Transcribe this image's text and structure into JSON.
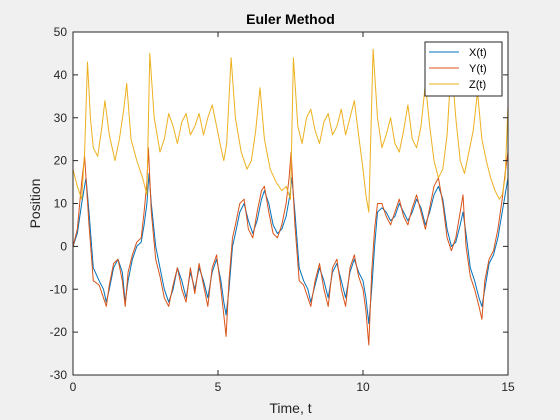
{
  "chart_data": {
    "type": "line",
    "title": "Euler Method",
    "xlabel": "Time, t",
    "ylabel": "Position",
    "xlim": [
      0,
      15
    ],
    "ylim": [
      -30,
      50
    ],
    "xticks": [
      0,
      5,
      10,
      15
    ],
    "yticks": [
      -30,
      -20,
      -10,
      0,
      10,
      20,
      30,
      40,
      50
    ],
    "grid": false,
    "legend_position": "top-right",
    "series": [
      {
        "name": "X(t)",
        "color": "#0072BD",
        "points": [
          [
            0,
            0
          ],
          [
            0.15,
            3
          ],
          [
            0.3,
            10
          ],
          [
            0.45,
            16
          ],
          [
            0.55,
            8
          ],
          [
            0.7,
            -5
          ],
          [
            0.9,
            -8
          ],
          [
            1.05,
            -10
          ],
          [
            1.15,
            -13
          ],
          [
            1.25,
            -10
          ],
          [
            1.4,
            -5
          ],
          [
            1.55,
            -3
          ],
          [
            1.7,
            -6
          ],
          [
            1.8,
            -13
          ],
          [
            1.9,
            -8
          ],
          [
            2.05,
            -3
          ],
          [
            2.2,
            0
          ],
          [
            2.35,
            1
          ],
          [
            2.45,
            5
          ],
          [
            2.55,
            10
          ],
          [
            2.62,
            17
          ],
          [
            2.7,
            10
          ],
          [
            2.85,
            0
          ],
          [
            3.0,
            -5
          ],
          [
            3.15,
            -10
          ],
          [
            3.3,
            -13
          ],
          [
            3.45,
            -10
          ],
          [
            3.6,
            -5
          ],
          [
            3.75,
            -8
          ],
          [
            3.9,
            -12
          ],
          [
            4.05,
            -6
          ],
          [
            4.2,
            -10
          ],
          [
            4.35,
            -5
          ],
          [
            4.5,
            -8
          ],
          [
            4.65,
            -12
          ],
          [
            4.8,
            -6
          ],
          [
            4.95,
            -3
          ],
          [
            5.1,
            -8
          ],
          [
            5.2,
            -13
          ],
          [
            5.28,
            -16
          ],
          [
            5.38,
            -10
          ],
          [
            5.5,
            0
          ],
          [
            5.6,
            3
          ],
          [
            5.75,
            8
          ],
          [
            5.9,
            10
          ],
          [
            6.05,
            6
          ],
          [
            6.2,
            3
          ],
          [
            6.35,
            6
          ],
          [
            6.5,
            11
          ],
          [
            6.6,
            13
          ],
          [
            6.75,
            10
          ],
          [
            6.9,
            5
          ],
          [
            7.05,
            3
          ],
          [
            7.2,
            4
          ],
          [
            7.35,
            7
          ],
          [
            7.48,
            12
          ],
          [
            7.55,
            16
          ],
          [
            7.65,
            8
          ],
          [
            7.8,
            -5
          ],
          [
            7.95,
            -8
          ],
          [
            8.1,
            -10
          ],
          [
            8.2,
            -13
          ],
          [
            8.35,
            -9
          ],
          [
            8.5,
            -5
          ],
          [
            8.65,
            -8
          ],
          [
            8.8,
            -12
          ],
          [
            8.95,
            -6
          ],
          [
            9.1,
            -4
          ],
          [
            9.25,
            -8
          ],
          [
            9.4,
            -12
          ],
          [
            9.55,
            -6
          ],
          [
            9.7,
            -3
          ],
          [
            9.85,
            -6
          ],
          [
            10.0,
            -8
          ],
          [
            10.1,
            -12
          ],
          [
            10.2,
            -18
          ],
          [
            10.3,
            -10
          ],
          [
            10.4,
            0
          ],
          [
            10.5,
            8
          ],
          [
            10.65,
            9
          ],
          [
            10.8,
            8
          ],
          [
            10.95,
            6
          ],
          [
            11.1,
            7
          ],
          [
            11.25,
            10
          ],
          [
            11.4,
            8
          ],
          [
            11.55,
            6
          ],
          [
            11.7,
            8
          ],
          [
            11.85,
            11
          ],
          [
            12.0,
            9
          ],
          [
            12.15,
            5
          ],
          [
            12.3,
            8
          ],
          [
            12.45,
            12
          ],
          [
            12.6,
            14
          ],
          [
            12.75,
            11
          ],
          [
            12.9,
            4
          ],
          [
            13.05,
            0
          ],
          [
            13.2,
            1
          ],
          [
            13.35,
            5
          ],
          [
            13.45,
            8
          ],
          [
            13.55,
            3
          ],
          [
            13.7,
            -5
          ],
          [
            13.85,
            -8
          ],
          [
            14.0,
            -12
          ],
          [
            14.1,
            -14
          ],
          [
            14.2,
            -10
          ],
          [
            14.35,
            -4
          ],
          [
            14.5,
            -2
          ],
          [
            14.65,
            2
          ],
          [
            14.8,
            8
          ],
          [
            14.9,
            12
          ],
          [
            15.0,
            16
          ]
        ]
      },
      {
        "name": "Y(t)",
        "color": "#D95319",
        "points": [
          [
            0,
            0
          ],
          [
            0.15,
            4
          ],
          [
            0.3,
            15
          ],
          [
            0.4,
            21
          ],
          [
            0.55,
            5
          ],
          [
            0.7,
            -8
          ],
          [
            0.9,
            -9
          ],
          [
            1.05,
            -12
          ],
          [
            1.15,
            -14
          ],
          [
            1.25,
            -9
          ],
          [
            1.4,
            -4
          ],
          [
            1.55,
            -3
          ],
          [
            1.7,
            -8
          ],
          [
            1.8,
            -14
          ],
          [
            1.9,
            -6
          ],
          [
            2.05,
            -2
          ],
          [
            2.2,
            1
          ],
          [
            2.35,
            2
          ],
          [
            2.45,
            8
          ],
          [
            2.55,
            15
          ],
          [
            2.6,
            23
          ],
          [
            2.7,
            8
          ],
          [
            2.85,
            -3
          ],
          [
            3.0,
            -7
          ],
          [
            3.15,
            -12
          ],
          [
            3.3,
            -14
          ],
          [
            3.45,
            -9
          ],
          [
            3.6,
            -5
          ],
          [
            3.75,
            -10
          ],
          [
            3.9,
            -13
          ],
          [
            4.05,
            -5
          ],
          [
            4.2,
            -11
          ],
          [
            4.35,
            -4
          ],
          [
            4.5,
            -9
          ],
          [
            4.65,
            -14
          ],
          [
            4.8,
            -5
          ],
          [
            4.95,
            -2
          ],
          [
            5.1,
            -10
          ],
          [
            5.2,
            -16
          ],
          [
            5.28,
            -21
          ],
          [
            5.38,
            -8
          ],
          [
            5.5,
            2
          ],
          [
            5.6,
            5
          ],
          [
            5.75,
            10
          ],
          [
            5.9,
            11
          ],
          [
            6.05,
            4
          ],
          [
            6.2,
            2
          ],
          [
            6.35,
            8
          ],
          [
            6.5,
            13
          ],
          [
            6.6,
            14
          ],
          [
            6.75,
            8
          ],
          [
            6.9,
            3
          ],
          [
            7.05,
            2
          ],
          [
            7.2,
            5
          ],
          [
            7.35,
            10
          ],
          [
            7.45,
            16
          ],
          [
            7.52,
            22
          ],
          [
            7.65,
            5
          ],
          [
            7.8,
            -8
          ],
          [
            7.95,
            -9
          ],
          [
            8.1,
            -12
          ],
          [
            8.2,
            -14
          ],
          [
            8.35,
            -8
          ],
          [
            8.5,
            -4
          ],
          [
            8.65,
            -10
          ],
          [
            8.8,
            -14
          ],
          [
            8.95,
            -5
          ],
          [
            9.1,
            -3
          ],
          [
            9.25,
            -10
          ],
          [
            9.4,
            -14
          ],
          [
            9.55,
            -5
          ],
          [
            9.7,
            -2
          ],
          [
            9.85,
            -7
          ],
          [
            10.0,
            -10
          ],
          [
            10.1,
            -15
          ],
          [
            10.2,
            -23
          ],
          [
            10.3,
            -6
          ],
          [
            10.4,
            4
          ],
          [
            10.5,
            10
          ],
          [
            10.65,
            10
          ],
          [
            10.8,
            7
          ],
          [
            10.95,
            5
          ],
          [
            11.1,
            8
          ],
          [
            11.25,
            11
          ],
          [
            11.4,
            7
          ],
          [
            11.55,
            5
          ],
          [
            11.7,
            9
          ],
          [
            11.85,
            12
          ],
          [
            12.0,
            8
          ],
          [
            12.15,
            4
          ],
          [
            12.3,
            9
          ],
          [
            12.45,
            14
          ],
          [
            12.6,
            16
          ],
          [
            12.75,
            10
          ],
          [
            12.9,
            2
          ],
          [
            13.05,
            -1
          ],
          [
            13.2,
            2
          ],
          [
            13.35,
            8
          ],
          [
            13.45,
            12
          ],
          [
            13.55,
            0
          ],
          [
            13.7,
            -7
          ],
          [
            13.85,
            -10
          ],
          [
            14.0,
            -14
          ],
          [
            14.1,
            -17
          ],
          [
            14.2,
            -8
          ],
          [
            14.35,
            -3
          ],
          [
            14.5,
            -1
          ],
          [
            14.65,
            4
          ],
          [
            14.8,
            11
          ],
          [
            14.9,
            17
          ],
          [
            15.0,
            22
          ]
        ]
      },
      {
        "name": "Z(t)",
        "color": "#EDB120",
        "points": [
          [
            0,
            18
          ],
          [
            0.15,
            14
          ],
          [
            0.3,
            11
          ],
          [
            0.4,
            22
          ],
          [
            0.5,
            43
          ],
          [
            0.6,
            30
          ],
          [
            0.7,
            23
          ],
          [
            0.85,
            21
          ],
          [
            1.0,
            28
          ],
          [
            1.1,
            34
          ],
          [
            1.25,
            26
          ],
          [
            1.45,
            20
          ],
          [
            1.6,
            25
          ],
          [
            1.75,
            32
          ],
          [
            1.85,
            38
          ],
          [
            2.0,
            25
          ],
          [
            2.2,
            20
          ],
          [
            2.4,
            16
          ],
          [
            2.55,
            12
          ],
          [
            2.65,
            45
          ],
          [
            2.8,
            30
          ],
          [
            3.0,
            22
          ],
          [
            3.15,
            25
          ],
          [
            3.3,
            31
          ],
          [
            3.45,
            28
          ],
          [
            3.6,
            24
          ],
          [
            3.75,
            29
          ],
          [
            3.9,
            31
          ],
          [
            4.05,
            26
          ],
          [
            4.2,
            28
          ],
          [
            4.35,
            31
          ],
          [
            4.5,
            26
          ],
          [
            4.65,
            30
          ],
          [
            4.8,
            33
          ],
          [
            4.95,
            28
          ],
          [
            5.1,
            23
          ],
          [
            5.2,
            20
          ],
          [
            5.3,
            24
          ],
          [
            5.45,
            44
          ],
          [
            5.6,
            30
          ],
          [
            5.8,
            22
          ],
          [
            6.0,
            18
          ],
          [
            6.15,
            20
          ],
          [
            6.3,
            27
          ],
          [
            6.45,
            37
          ],
          [
            6.6,
            25
          ],
          [
            6.8,
            18
          ],
          [
            7.0,
            15
          ],
          [
            7.2,
            13
          ],
          [
            7.35,
            14
          ],
          [
            7.5,
            11
          ],
          [
            7.6,
            44
          ],
          [
            7.75,
            28
          ],
          [
            7.9,
            24
          ],
          [
            8.05,
            30
          ],
          [
            8.2,
            32
          ],
          [
            8.35,
            27
          ],
          [
            8.5,
            24
          ],
          [
            8.65,
            29
          ],
          [
            8.8,
            31
          ],
          [
            8.95,
            26
          ],
          [
            9.1,
            28
          ],
          [
            9.25,
            32
          ],
          [
            9.4,
            26
          ],
          [
            9.55,
            30
          ],
          [
            9.7,
            34
          ],
          [
            9.85,
            26
          ],
          [
            10.0,
            18
          ],
          [
            10.1,
            12
          ],
          [
            10.2,
            8
          ],
          [
            10.35,
            46
          ],
          [
            10.5,
            30
          ],
          [
            10.65,
            23
          ],
          [
            10.8,
            26
          ],
          [
            10.95,
            30
          ],
          [
            11.1,
            24
          ],
          [
            11.25,
            22
          ],
          [
            11.4,
            27
          ],
          [
            11.55,
            33
          ],
          [
            11.7,
            25
          ],
          [
            11.85,
            23
          ],
          [
            12.0,
            28
          ],
          [
            12.15,
            38
          ],
          [
            12.3,
            28
          ],
          [
            12.45,
            20
          ],
          [
            12.6,
            16
          ],
          [
            12.75,
            18
          ],
          [
            12.9,
            26
          ],
          [
            13.05,
            43
          ],
          [
            13.2,
            30
          ],
          [
            13.35,
            20
          ],
          [
            13.5,
            17
          ],
          [
            13.65,
            22
          ],
          [
            13.8,
            27
          ],
          [
            13.95,
            36
          ],
          [
            14.1,
            25
          ],
          [
            14.25,
            20
          ],
          [
            14.4,
            16
          ],
          [
            14.55,
            13
          ],
          [
            14.7,
            11
          ],
          [
            14.8,
            12
          ],
          [
            14.9,
            16
          ],
          [
            15.0,
            33
          ]
        ]
      }
    ]
  }
}
